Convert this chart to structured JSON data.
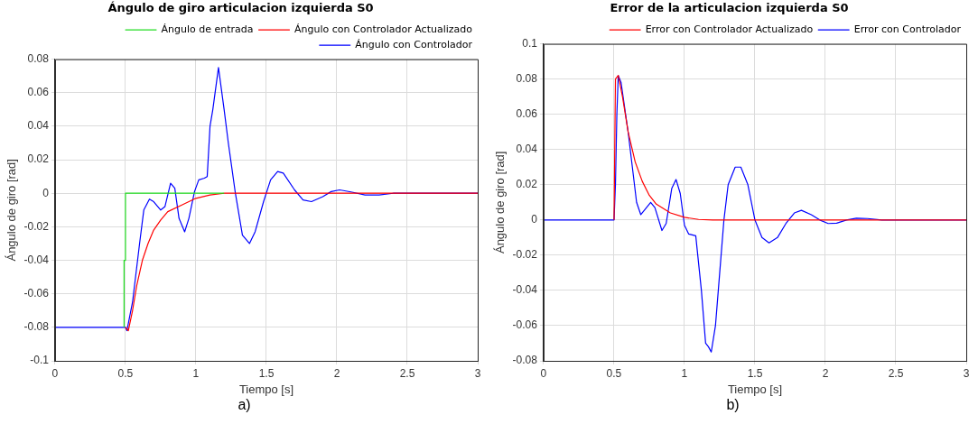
{
  "chart_data": [
    {
      "type": "line",
      "title": "Ángulo de giro articulacion izquierda S0",
      "xlabel": "Tiempo [s]",
      "ylabel": "Ángulo de giro [rad]",
      "xlim": [
        0,
        3
      ],
      "xticks": [
        0,
        0.5,
        1,
        1.5,
        2,
        2.5,
        3
      ],
      "ylim": [
        -0.1,
        0.08
      ],
      "yticks": [
        -0.1,
        -0.08,
        -0.06,
        -0.04,
        -0.02,
        0,
        0.02,
        0.04,
        0.06,
        0.08
      ],
      "grid": true,
      "legend": "top right",
      "marker": "none",
      "line_style": "solid",
      "annotations": [
        "a)"
      ],
      "series": [
        {
          "name": "Ángulo de entrada",
          "color": "#22dd22",
          "x": [
            0.49,
            0.49,
            0.5,
            0.5,
            1.2
          ],
          "values": [
            -0.08,
            -0.04,
            -0.04,
            0,
            0
          ]
        },
        {
          "name": "Ángulo con Controlador Actualizado",
          "color": "#ff0000",
          "x": [
            0.5,
            0.52,
            0.55,
            0.58,
            0.62,
            0.66,
            0.7,
            0.75,
            0.8,
            0.9,
            1,
            1.1,
            1.2,
            3
          ],
          "values": [
            -0.08,
            -0.082,
            -0.07,
            -0.055,
            -0.04,
            -0.03,
            -0.022,
            -0.016,
            -0.011,
            -0.007,
            -0.003,
            -0.001,
            0,
            0
          ]
        },
        {
          "name": "Ángulo con Controlador",
          "color": "#0000ff",
          "x": [
            0,
            0.5,
            0.51,
            0.55,
            0.6,
            0.63,
            0.67,
            0.7,
            0.75,
            0.78,
            0.82,
            0.85,
            0.88,
            0.92,
            0.95,
            0.99,
            1.02,
            1.06,
            1.08,
            1.1,
            1.12,
            1.16,
            1.2,
            1.23,
            1.28,
            1.33,
            1.38,
            1.42,
            1.48,
            1.53,
            1.58,
            1.62,
            1.7,
            1.76,
            1.82,
            1.9,
            1.96,
            2.02,
            2.1,
            2.2,
            2.3,
            2.4,
            3
          ],
          "values": [
            -0.08,
            -0.08,
            -0.082,
            -0.065,
            -0.03,
            -0.01,
            -0.0035,
            -0.005,
            -0.01,
            -0.008,
            0.006,
            0.003,
            -0.015,
            -0.023,
            -0.015,
            0.001,
            0.008,
            0.009,
            0.01,
            0.04,
            0.05,
            0.075,
            0.05,
            0.03,
            0,
            -0.025,
            -0.03,
            -0.023,
            -0.005,
            0.008,
            0.013,
            0.012,
            0.002,
            -0.004,
            -0.005,
            -0.002,
            0.001,
            0.002,
            0.0008,
            -0.001,
            -0.001,
            0,
            0
          ]
        }
      ]
    },
    {
      "type": "line",
      "title": "Error de la articulacion izquierda S0",
      "xlabel": "Tiempo [s]",
      "ylabel": "Ángulo de giro [rad]",
      "xlim": [
        0,
        3
      ],
      "xticks": [
        0,
        0.5,
        1,
        1.5,
        2,
        2.5,
        3
      ],
      "ylim": [
        -0.08,
        0.1
      ],
      "yticks": [
        -0.08,
        -0.06,
        -0.04,
        -0.02,
        0,
        0.02,
        0.04,
        0.06,
        0.08,
        0.1
      ],
      "grid": true,
      "legend": "top right",
      "marker": "none",
      "line_style": "solid",
      "annotations": [
        "b)"
      ],
      "series": [
        {
          "name": "Error con Controlador Actualizado",
          "color": "#ff0000",
          "x": [
            0.5,
            0.51,
            0.53,
            0.56,
            0.6,
            0.65,
            0.7,
            0.75,
            0.8,
            0.9,
            1,
            1.1,
            1.2,
            3
          ],
          "values": [
            0,
            0.08,
            0.082,
            0.07,
            0.05,
            0.033,
            0.022,
            0.014,
            0.009,
            0.004,
            0.0015,
            0.0003,
            0,
            0
          ]
        },
        {
          "name": "Error con Controlador",
          "color": "#0000ff",
          "x": [
            0,
            0.5,
            0.51,
            0.52,
            0.53,
            0.55,
            0.6,
            0.63,
            0.66,
            0.69,
            0.72,
            0.76,
            0.79,
            0.84,
            0.87,
            0.91,
            0.94,
            0.97,
            1,
            1.03,
            1.08,
            1.12,
            1.15,
            1.17,
            1.19,
            1.22,
            1.25,
            1.28,
            1.31,
            1.36,
            1.4,
            1.45,
            1.5,
            1.55,
            1.6,
            1.66,
            1.72,
            1.78,
            1.83,
            1.9,
            1.96,
            2.02,
            2.08,
            2.15,
            2.22,
            2.3,
            2.4,
            3
          ],
          "values": [
            0,
            0,
            0.02,
            0.06,
            0.082,
            0.078,
            0.05,
            0.03,
            0.01,
            0.003,
            0.006,
            0.01,
            0.007,
            -0.006,
            -0.002,
            0.018,
            0.023,
            0.015,
            -0.003,
            -0.008,
            -0.009,
            -0.04,
            -0.07,
            -0.072,
            -0.075,
            -0.06,
            -0.03,
            0,
            0.02,
            0.03,
            0.03,
            0.02,
            0,
            -0.01,
            -0.013,
            -0.01,
            -0.002,
            0.004,
            0.0055,
            0.003,
            0,
            -0.002,
            -0.0018,
            0,
            0.001,
            0.0008,
            0,
            0
          ]
        }
      ]
    }
  ]
}
